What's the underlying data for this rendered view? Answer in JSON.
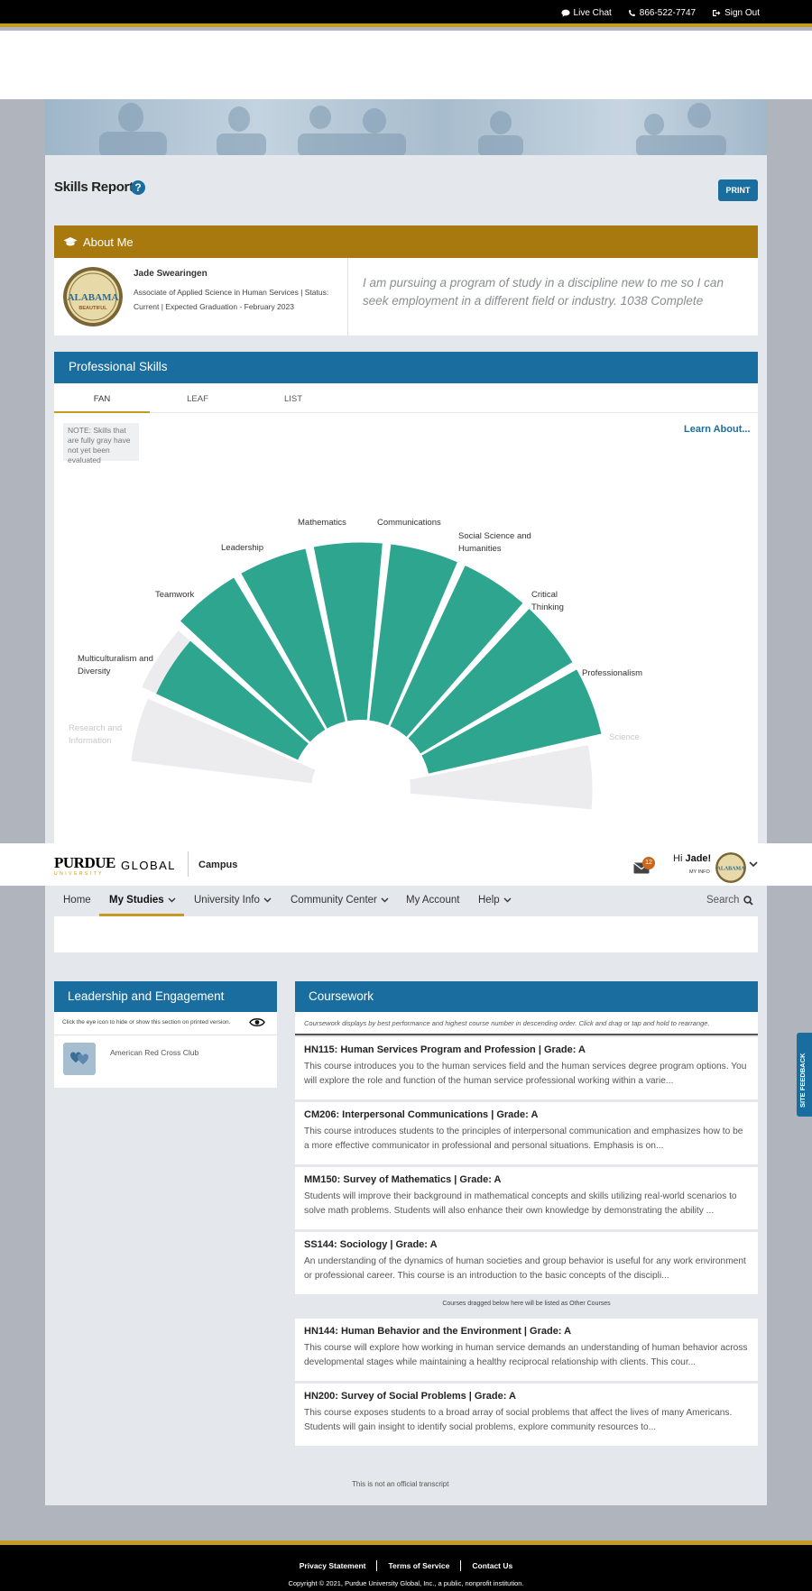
{
  "topbar": {
    "live_chat": "Live Chat",
    "phone": "866-522-7747",
    "sign_out": "Sign Out"
  },
  "page": {
    "title": "Skills Report",
    "help": "?",
    "print_label": "PRINT"
  },
  "about": {
    "header": "About Me",
    "student_name": "Jade Swearingen",
    "program": "Associate of Applied Science in Human Services | Status: Current | Expected Graduation - February 2023",
    "avatar_text": "ALABAMA",
    "avatar_subtext": "BEAUTIFUL",
    "quote": "I am pursuing a program of study in a discipline new to me so I can seek employment in a different field or industry. 1038 Complete"
  },
  "professional_skills": {
    "header": "Professional Skills",
    "tabs": [
      "FAN",
      "LEAF",
      "LIST"
    ],
    "learn_about": "Learn About...",
    "note": "NOTE: Skills that are fully gray have not yet been evaluated",
    "skills": [
      {
        "name": "Research and Information",
        "level": 0
      },
      {
        "name": "Multiculturalism and Diversity",
        "level": 0.85
      },
      {
        "name": "Teamwork",
        "level": 0.95
      },
      {
        "name": "Leadership",
        "level": 0.95
      },
      {
        "name": "Mathematics",
        "level": 0.95
      },
      {
        "name": "Communications",
        "level": 0.95
      },
      {
        "name": "Social Science and Humanities",
        "level": 0.95
      },
      {
        "name": "Critical Thinking",
        "level": 0.95
      },
      {
        "name": "Professionalism",
        "level": 0.95
      },
      {
        "name": "Science",
        "level": 0
      }
    ],
    "colors": {
      "evaluated": "#2ea58f",
      "unevaluated": "#ececee"
    }
  },
  "nav": {
    "logo_purdue": "PURDUE",
    "logo_global": "GLOBAL",
    "logo_university": "UNIVERSITY",
    "campus": "Campus",
    "mail_count": "12",
    "greeting": "Hi",
    "user_first_name": "Jade!",
    "my_info": "MY INFO",
    "items": [
      "Home",
      "My Studies",
      "University Info",
      "Community Center",
      "My Account",
      "Help"
    ],
    "search": "Search"
  },
  "leadership": {
    "header": "Leadership and Engagement",
    "note": "Click the eye icon to hide or show this section on printed version.",
    "items": [
      "American Red Cross Club"
    ]
  },
  "coursework": {
    "header": "Coursework",
    "note": "Coursework displays by best performance and highest course number in descending order. Click and drag or tap and hold to rearrange.",
    "courses": [
      {
        "title": "HN115: Human Services Program and Profession | Grade: A",
        "desc": "This course introduces you to the human services field and the human services degree program options. You will explore the role and function of the human service professional working within a varie..."
      },
      {
        "title": "CM206: Interpersonal Communications | Grade: A",
        "desc": "This course introduces students to the principles of interpersonal communication and emphasizes how to be a more effective communicator in professional and personal situations. Emphasis is on..."
      },
      {
        "title": "MM150: Survey of Mathematics | Grade: A",
        "desc": "Students will improve their background in mathematical concepts and skills utilizing real-world scenarios to solve math problems. Students will also enhance their own knowledge by demonstrating the ability ..."
      },
      {
        "title": "SS144: Sociology | Grade: A",
        "desc": "An understanding of the dynamics of human societies and group behavior is useful for any work environment or professional career. This course is an introduction to the basic concepts of the discipli..."
      }
    ],
    "drag_note": "Courses dragged below here will be listed as Other Courses",
    "other_courses": [
      {
        "title": "HN144: Human Behavior and the Environment | Grade: A",
        "desc": "This course will explore how working in human service demands an understanding of human behavior across developmental stages while maintaining a healthy reciprocal relationship with clients. This cour..."
      },
      {
        "title": "HN200: Survey of Social Problems | Grade: A",
        "desc": "This course exposes students to a broad array of social problems that affect the lives of many Americans. Students will gain insight to identify social problems, explore community resources to..."
      }
    ]
  },
  "transcript_note": "This is not an official transcript",
  "site_feedback": "SITE FEEDBACK",
  "footer": {
    "links": [
      "Privacy Statement",
      "Terms of Service",
      "Contact Us"
    ],
    "copyright": "Copyright © 2021, Purdue University Global, Inc., a public, nonprofit institution."
  }
}
